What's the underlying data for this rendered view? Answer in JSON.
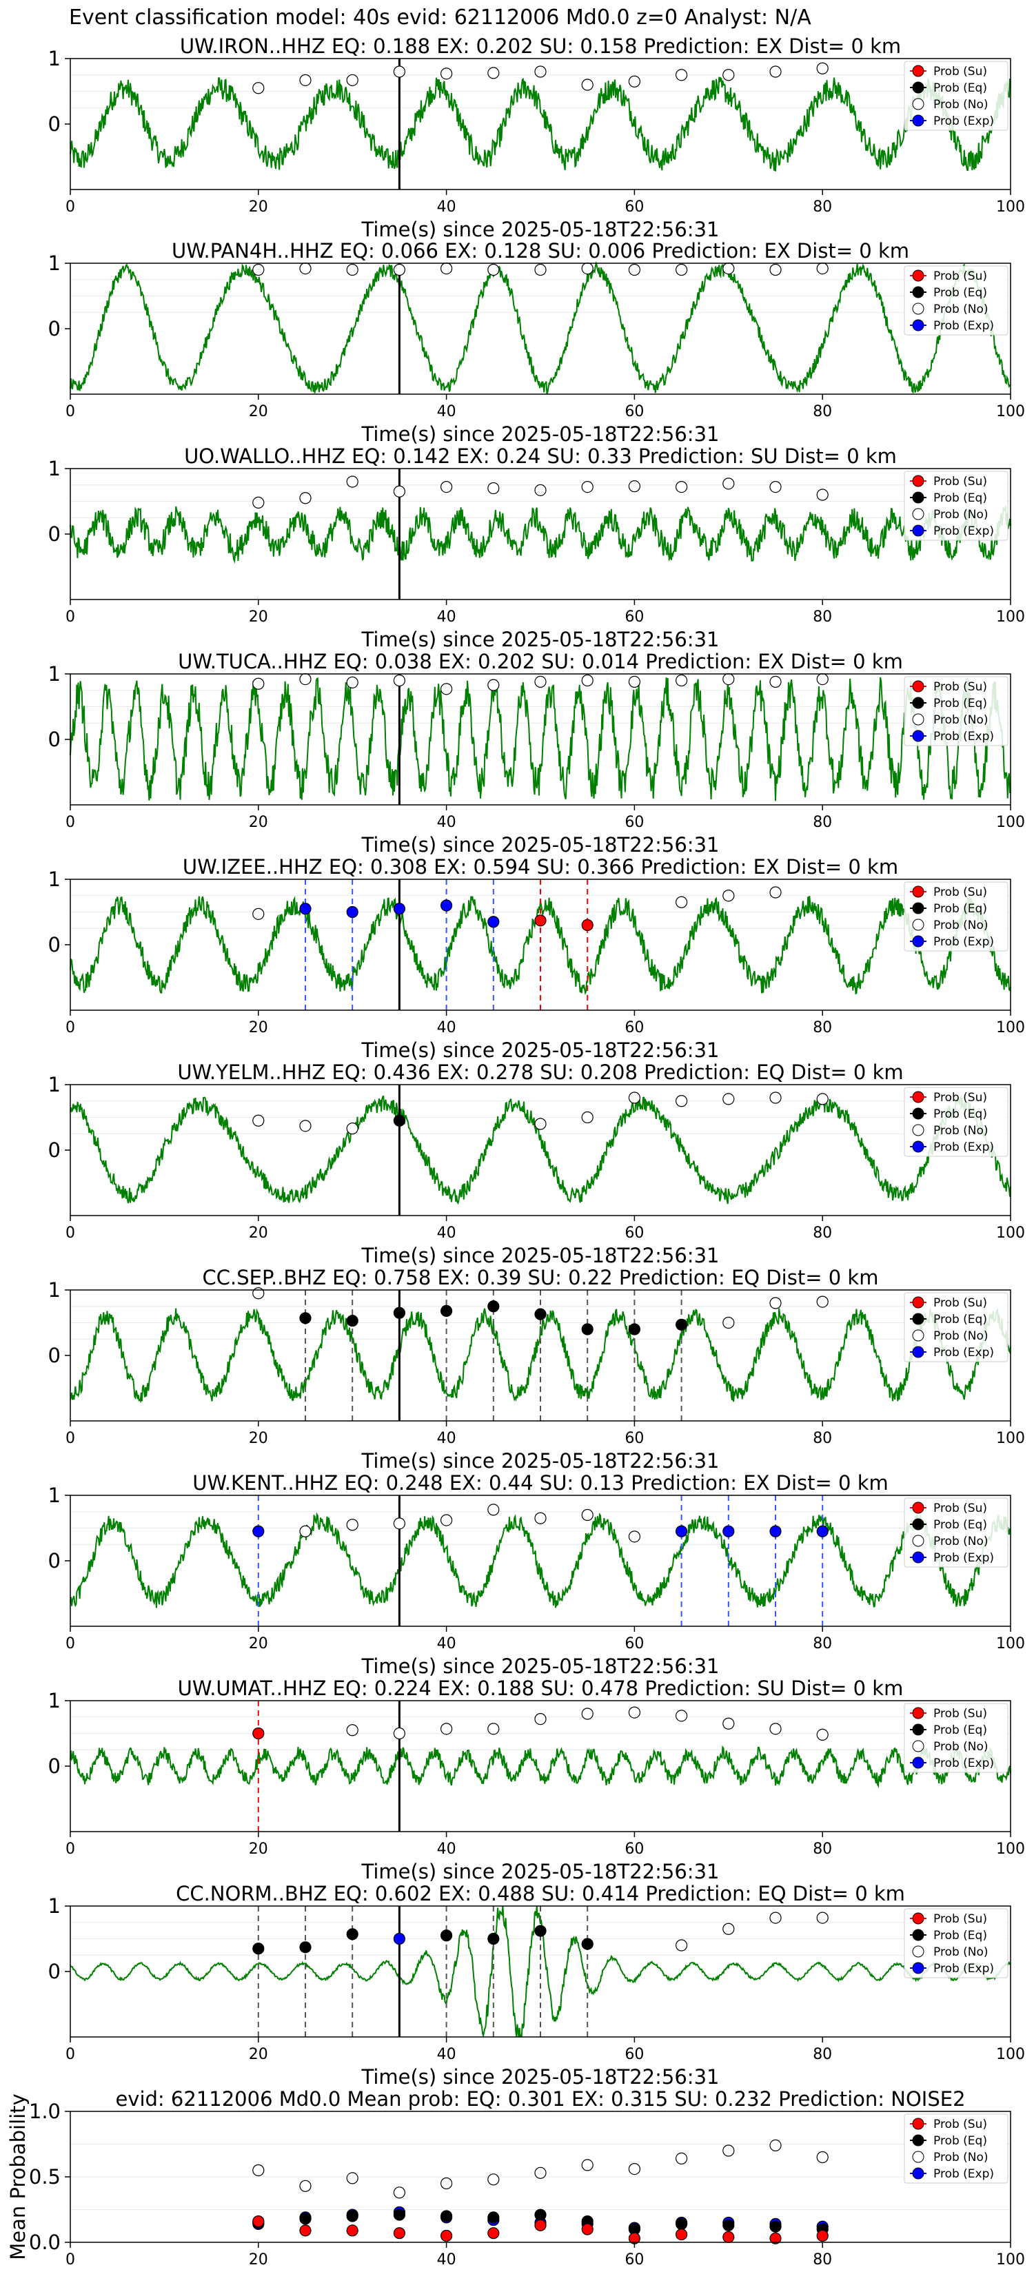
{
  "figure": {
    "header": "Event classification model: 40s evid: 62112006 Md0.0 z=0 Analyst: N/A",
    "xlabel": "Time(s) since 2025-05-18T22:56:31",
    "x_ticks": [
      0,
      20,
      40,
      60,
      80,
      100
    ],
    "y_ticks": [
      0,
      1
    ],
    "legend": [
      "Prob (Su)",
      "Prob (Eq)",
      "Prob (No)",
      "Prob (Exp)"
    ],
    "legend_placement": "top-right",
    "arrival_time_s": 35,
    "colors": {
      "waveform": "#008000",
      "su": "#ff0000",
      "eq": "#000000",
      "no": "#ffffff",
      "exp": "#0000ff"
    }
  },
  "chart_data": [
    {
      "type": "line",
      "title": "UW.IRON..HHZ   EQ: 0.188  EX: 0.202  SU: 0.158   Prediction: EX    Dist= 0 km",
      "xlim": [
        0,
        100
      ],
      "ylim": [
        -1,
        1
      ],
      "no": [
        [
          20,
          0.55
        ],
        [
          25,
          0.67
        ],
        [
          30,
          0.67
        ],
        [
          35,
          0.8
        ],
        [
          40,
          0.77
        ],
        [
          45,
          0.78
        ],
        [
          50,
          0.8
        ],
        [
          55,
          0.6
        ],
        [
          60,
          0.65
        ],
        [
          65,
          0.75
        ],
        [
          70,
          0.75
        ],
        [
          75,
          0.8
        ],
        [
          80,
          0.85
        ]
      ],
      "eq": [],
      "exp": [],
      "su": [],
      "vlines": []
    },
    {
      "type": "line",
      "title": "UW.PAN4H..HHZ   EQ: 0.066  EX: 0.128  SU: 0.006   Prediction: EX    Dist= 0 km",
      "xlim": [
        0,
        100
      ],
      "ylim": [
        -1,
        1
      ],
      "no": [
        [
          20,
          0.9
        ],
        [
          25,
          0.92
        ],
        [
          30,
          0.9
        ],
        [
          35,
          0.9
        ],
        [
          40,
          0.92
        ],
        [
          45,
          0.9
        ],
        [
          50,
          0.9
        ],
        [
          55,
          0.92
        ],
        [
          60,
          0.9
        ],
        [
          65,
          0.9
        ],
        [
          70,
          0.92
        ],
        [
          75,
          0.9
        ],
        [
          80,
          0.92
        ]
      ],
      "eq": [],
      "exp": [],
      "su": [],
      "vlines": []
    },
    {
      "type": "line",
      "title": "UO.WALLO..HHZ   EQ: 0.142  EX: 0.24  SU: 0.33   Prediction: SU    Dist= 0 km",
      "xlim": [
        0,
        100
      ],
      "ylim": [
        -1,
        1
      ],
      "no": [
        [
          20,
          0.48
        ],
        [
          25,
          0.55
        ],
        [
          30,
          0.8
        ],
        [
          35,
          0.65
        ],
        [
          40,
          0.72
        ],
        [
          45,
          0.7
        ],
        [
          50,
          0.67
        ],
        [
          55,
          0.72
        ],
        [
          60,
          0.73
        ],
        [
          65,
          0.72
        ],
        [
          70,
          0.77
        ],
        [
          75,
          0.72
        ],
        [
          80,
          0.6
        ]
      ],
      "eq": [],
      "exp": [],
      "su": [],
      "vlines": []
    },
    {
      "type": "line",
      "title": "UW.TUCA..HHZ   EQ: 0.038  EX: 0.202  SU: 0.014   Prediction: EX    Dist= 0 km",
      "xlim": [
        0,
        100
      ],
      "ylim": [
        -1,
        1
      ],
      "no": [
        [
          20,
          0.85
        ],
        [
          25,
          0.92
        ],
        [
          30,
          0.87
        ],
        [
          35,
          0.9
        ],
        [
          40,
          0.77
        ],
        [
          45,
          0.83
        ],
        [
          50,
          0.88
        ],
        [
          55,
          0.9
        ],
        [
          60,
          0.88
        ],
        [
          65,
          0.9
        ],
        [
          70,
          0.92
        ],
        [
          75,
          0.88
        ],
        [
          80,
          0.92
        ]
      ],
      "eq": [],
      "exp": [],
      "su": [],
      "vlines": []
    },
    {
      "type": "line",
      "title": "UW.IZEE..HHZ   EQ: 0.308  EX: 0.594  SU: 0.366   Prediction: EX    Dist= 0 km",
      "xlim": [
        0,
        100
      ],
      "ylim": [
        -1,
        1
      ],
      "no": [
        [
          20,
          0.47
        ],
        [
          65,
          0.65
        ],
        [
          70,
          0.75
        ],
        [
          75,
          0.8
        ]
      ],
      "eq": [],
      "exp": [
        [
          25,
          0.55
        ],
        [
          30,
          0.5
        ],
        [
          35,
          0.55
        ],
        [
          40,
          0.6
        ],
        [
          45,
          0.35
        ]
      ],
      "su": [
        [
          50,
          0.37
        ],
        [
          55,
          0.3
        ]
      ],
      "vlines": [
        [
          25,
          "exp"
        ],
        [
          30,
          "exp"
        ],
        [
          40,
          "exp"
        ],
        [
          45,
          "exp"
        ],
        [
          50,
          "su"
        ],
        [
          55,
          "su"
        ]
      ]
    },
    {
      "type": "line",
      "title": "UW.YELM..HHZ   EQ: 0.436  EX: 0.278  SU: 0.208   Prediction: EQ    Dist= 0 km",
      "xlim": [
        0,
        100
      ],
      "ylim": [
        -1,
        1
      ],
      "no": [
        [
          20,
          0.45
        ],
        [
          25,
          0.37
        ],
        [
          30,
          0.33
        ],
        [
          50,
          0.4
        ],
        [
          55,
          0.5
        ],
        [
          60,
          0.8
        ],
        [
          65,
          0.75
        ],
        [
          70,
          0.78
        ],
        [
          75,
          0.8
        ],
        [
          80,
          0.78
        ]
      ],
      "eq": [
        [
          35,
          0.45
        ]
      ],
      "exp": [],
      "su": [],
      "vlines": []
    },
    {
      "type": "line",
      "title": "CC.SEP..BHZ   EQ: 0.758  EX: 0.39  SU: 0.22   Prediction: EQ    Dist= 0 km",
      "xlim": [
        0,
        100
      ],
      "ylim": [
        -1,
        1
      ],
      "no": [
        [
          20,
          0.95
        ],
        [
          70,
          0.5
        ],
        [
          75,
          0.8
        ],
        [
          80,
          0.82
        ]
      ],
      "eq": [
        [
          25,
          0.57
        ],
        [
          30,
          0.53
        ],
        [
          35,
          0.65
        ],
        [
          40,
          0.68
        ],
        [
          45,
          0.75
        ],
        [
          50,
          0.63
        ],
        [
          55,
          0.4
        ],
        [
          60,
          0.4
        ],
        [
          65,
          0.47
        ]
      ],
      "exp": [],
      "su": [],
      "vlines": [
        [
          25,
          "eq"
        ],
        [
          30,
          "eq"
        ],
        [
          40,
          "eq"
        ],
        [
          45,
          "eq"
        ],
        [
          50,
          "eq"
        ],
        [
          55,
          "eq"
        ],
        [
          60,
          "eq"
        ],
        [
          65,
          "eq"
        ]
      ]
    },
    {
      "type": "line",
      "title": "UW.KENT..HHZ   EQ: 0.248  EX: 0.44  SU: 0.13   Prediction: EX    Dist= 0 km",
      "xlim": [
        0,
        100
      ],
      "ylim": [
        -1,
        1
      ],
      "no": [
        [
          25,
          0.45
        ],
        [
          30,
          0.55
        ],
        [
          35,
          0.57
        ],
        [
          40,
          0.62
        ],
        [
          45,
          0.78
        ],
        [
          50,
          0.65
        ],
        [
          55,
          0.7
        ],
        [
          60,
          0.37
        ]
      ],
      "eq": [],
      "exp": [
        [
          20,
          0.45
        ],
        [
          65,
          0.45
        ],
        [
          70,
          0.45
        ],
        [
          75,
          0.45
        ],
        [
          80,
          0.45
        ]
      ],
      "su": [],
      "vlines": [
        [
          20,
          "exp"
        ],
        [
          65,
          "exp"
        ],
        [
          70,
          "exp"
        ],
        [
          75,
          "exp"
        ],
        [
          80,
          "exp"
        ]
      ]
    },
    {
      "type": "line",
      "title": "UW.UMAT..HHZ   EQ: 0.224  EX: 0.188  SU: 0.478   Prediction: SU    Dist= 0 km",
      "xlim": [
        0,
        100
      ],
      "ylim": [
        -1,
        1
      ],
      "no": [
        [
          30,
          0.55
        ],
        [
          35,
          0.5
        ],
        [
          40,
          0.57
        ],
        [
          45,
          0.57
        ],
        [
          50,
          0.72
        ],
        [
          55,
          0.8
        ],
        [
          60,
          0.82
        ],
        [
          65,
          0.77
        ],
        [
          70,
          0.65
        ],
        [
          75,
          0.57
        ],
        [
          80,
          0.48
        ]
      ],
      "eq": [],
      "exp": [],
      "su": [
        [
          20,
          0.5
        ]
      ],
      "vlines": [
        [
          20,
          "su"
        ]
      ]
    },
    {
      "type": "line",
      "title": "CC.NORM..BHZ   EQ: 0.602  EX: 0.488  SU: 0.414   Prediction: EQ    Dist= 0 km",
      "xlim": [
        0,
        100
      ],
      "ylim": [
        -1,
        1
      ],
      "no": [
        [
          65,
          0.4
        ],
        [
          70,
          0.65
        ],
        [
          75,
          0.82
        ],
        [
          80,
          0.82
        ]
      ],
      "eq": [
        [
          20,
          0.35
        ],
        [
          25,
          0.37
        ],
        [
          30,
          0.57
        ],
        [
          40,
          0.55
        ],
        [
          45,
          0.5
        ],
        [
          50,
          0.62
        ],
        [
          55,
          0.42
        ]
      ],
      "exp": [
        [
          35,
          0.5
        ]
      ],
      "su": [],
      "vlines": [
        [
          20,
          "eq"
        ],
        [
          25,
          "eq"
        ],
        [
          30,
          "eq"
        ],
        [
          40,
          "eq"
        ],
        [
          45,
          "eq"
        ],
        [
          50,
          "eq"
        ],
        [
          55,
          "eq"
        ]
      ]
    },
    {
      "type": "scatter",
      "title": "evid: 62112006  Md0.0   Mean prob:   EQ: 0.301  EX: 0.315  SU: 0.232   Prediction: NOISE2",
      "ylabel": "Mean Probability",
      "xlim": [
        0,
        100
      ],
      "ylim": [
        0,
        1
      ],
      "y_ticks": [
        0.0,
        0.5,
        1.0
      ],
      "y_tick_labels": [
        "0.0",
        "0.5",
        "1.0"
      ],
      "x_tick_labels": [
        "0",
        "20",
        "40",
        "60",
        "80",
        "100"
      ],
      "no": [
        [
          20,
          0.55
        ],
        [
          25,
          0.43
        ],
        [
          30,
          0.49
        ],
        [
          35,
          0.38
        ],
        [
          40,
          0.45
        ],
        [
          45,
          0.48
        ],
        [
          50,
          0.53
        ],
        [
          55,
          0.59
        ],
        [
          60,
          0.56
        ],
        [
          65,
          0.64
        ],
        [
          70,
          0.7
        ],
        [
          75,
          0.74
        ],
        [
          80,
          0.65
        ]
      ],
      "eq": [
        [
          20,
          0.15
        ],
        [
          25,
          0.18
        ],
        [
          30,
          0.2
        ],
        [
          35,
          0.21
        ],
        [
          40,
          0.2
        ],
        [
          45,
          0.19
        ],
        [
          50,
          0.21
        ],
        [
          55,
          0.16
        ],
        [
          60,
          0.1
        ],
        [
          65,
          0.14
        ],
        [
          70,
          0.13
        ],
        [
          75,
          0.12
        ],
        [
          80,
          0.1
        ]
      ],
      "exp": [
        [
          20,
          0.14
        ],
        [
          25,
          0.19
        ],
        [
          30,
          0.21
        ],
        [
          35,
          0.23
        ],
        [
          40,
          0.19
        ],
        [
          45,
          0.17
        ],
        [
          50,
          0.15
        ],
        [
          55,
          0.14
        ],
        [
          60,
          0.11
        ],
        [
          65,
          0.15
        ],
        [
          70,
          0.15
        ],
        [
          75,
          0.14
        ],
        [
          80,
          0.12
        ]
      ],
      "su": [
        [
          20,
          0.16
        ],
        [
          25,
          0.09
        ],
        [
          30,
          0.09
        ],
        [
          35,
          0.07
        ],
        [
          40,
          0.05
        ],
        [
          45,
          0.07
        ],
        [
          50,
          0.13
        ],
        [
          55,
          0.1
        ],
        [
          60,
          0.03
        ],
        [
          65,
          0.06
        ],
        [
          70,
          0.04
        ],
        [
          75,
          0.03
        ],
        [
          80,
          0.05
        ]
      ]
    }
  ]
}
